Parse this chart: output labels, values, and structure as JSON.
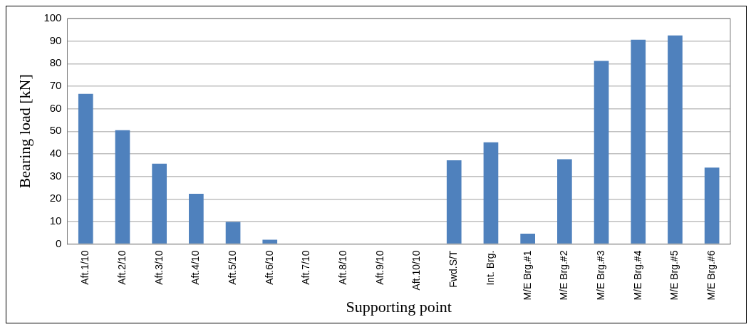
{
  "chart_data": {
    "type": "bar",
    "xlabel": "Supporting point",
    "ylabel": "Bearing load [kN]",
    "categories": [
      "Aft.1/10",
      "Aft.2/10",
      "Aft.3/10",
      "Aft.4/10",
      "Aft.5/10",
      "Aft.6/10",
      "Aft.7/10",
      "Aft.8/10",
      "Aft.9/10",
      "Aft.10/10",
      "Fwd.S/T",
      "Int. Brg.",
      "M/E Brg.#1",
      "M/E Brg.#2",
      "M/E Brg.#3",
      "M/E Brg.#4",
      "M/E Brg.#5",
      "M/E Brg.#6"
    ],
    "values": [
      66.6,
      50.5,
      35.6,
      22.3,
      9.8,
      1.9,
      0,
      0,
      0,
      0,
      37.1,
      45.1,
      4.6,
      37.6,
      81.2,
      90.6,
      92.5,
      33.9
    ],
    "color": "#4f81bd",
    "ylim": [
      0,
      100
    ],
    "yticks": [
      0,
      10,
      20,
      30,
      40,
      50,
      60,
      70,
      80,
      90,
      100
    ],
    "grid": "y",
    "legend": false
  }
}
